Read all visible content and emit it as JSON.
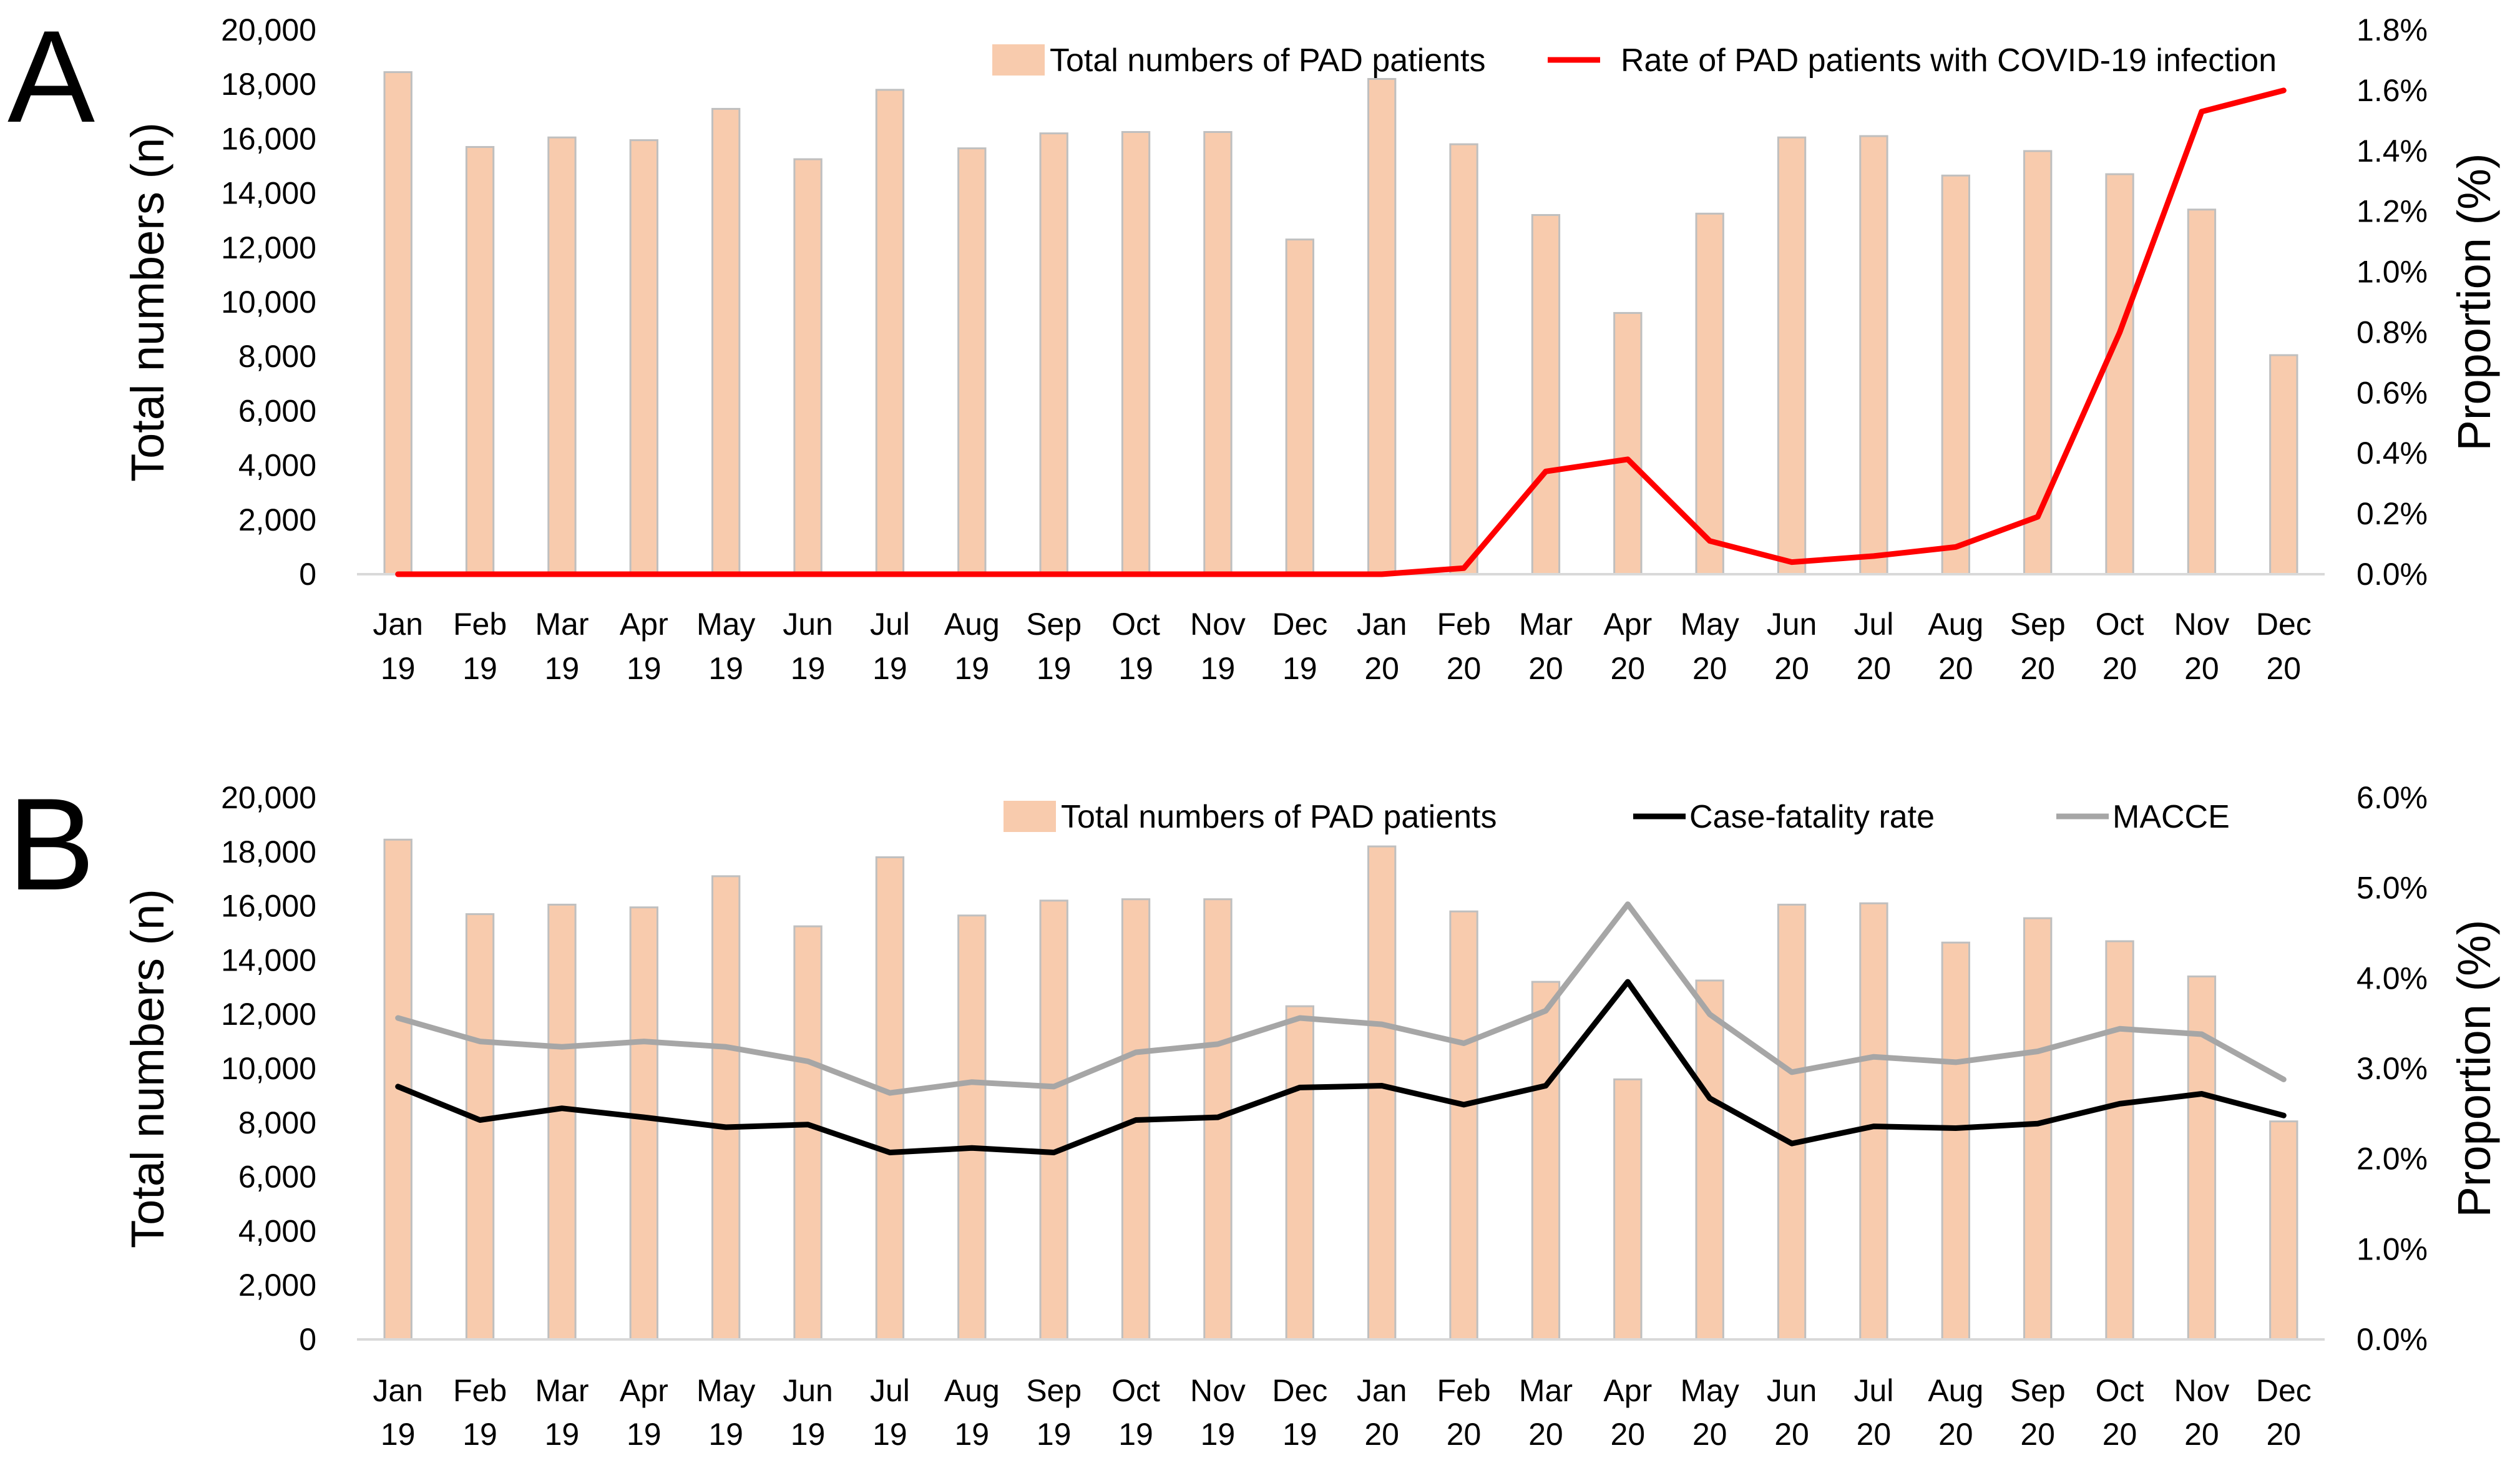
{
  "figure": {
    "panels": [
      "A",
      "B"
    ]
  },
  "colors": {
    "bar_fill": "#F8CBAD",
    "bar_stroke": "#BFBFBF",
    "covid_line": "#FF0000",
    "fatality_line": "#000000",
    "macce_line": "#A6A6A6",
    "axis": "#D9D9D9"
  },
  "chart_data": [
    {
      "panel": "A",
      "type": "bar",
      "title": "",
      "categories": [
        [
          "Jan",
          "19"
        ],
        [
          "Feb",
          "19"
        ],
        [
          "Mar",
          "19"
        ],
        [
          "Apr",
          "19"
        ],
        [
          "May",
          "19"
        ],
        [
          "Jun",
          "19"
        ],
        [
          "Jul",
          "19"
        ],
        [
          "Aug",
          "19"
        ],
        [
          "Sep",
          "19"
        ],
        [
          "Oct",
          "19"
        ],
        [
          "Nov",
          "19"
        ],
        [
          "Dec",
          "19"
        ],
        [
          "Jan",
          "20"
        ],
        [
          "Feb",
          "20"
        ],
        [
          "Mar",
          "20"
        ],
        [
          "Apr",
          "20"
        ],
        [
          "May",
          "20"
        ],
        [
          "Jun",
          "20"
        ],
        [
          "Jul",
          "20"
        ],
        [
          "Aug",
          "20"
        ],
        [
          "Sep",
          "20"
        ],
        [
          "Oct",
          "20"
        ],
        [
          "Nov",
          "20"
        ],
        [
          "Dec",
          "20"
        ]
      ],
      "ylabel": "Total numbers (n)",
      "y2label": "Proportion (%)",
      "ylim": [
        0,
        20000
      ],
      "y2lim": [
        0,
        1.8
      ],
      "yticks": [
        "0",
        "2,000",
        "4,000",
        "6,000",
        "8,000",
        "10,000",
        "12,000",
        "14,000",
        "16,000",
        "18,000",
        "20,000"
      ],
      "y2ticks": [
        "0.0%",
        "0.2%",
        "0.4%",
        "0.6%",
        "0.8%",
        "1.0%",
        "1.2%",
        "1.4%",
        "1.6%",
        "1.8%"
      ],
      "series": [
        {
          "name": "Total numbers of PAD patients",
          "kind": "bar",
          "axis": "left",
          "color": "#F8CBAD",
          "values": [
            18450,
            15700,
            16050,
            15950,
            17100,
            15250,
            17800,
            15650,
            16200,
            16250,
            16250,
            12300,
            18200,
            15800,
            13200,
            9600,
            13250,
            16050,
            16100,
            14650,
            15550,
            14700,
            13400,
            8050
          ]
        },
        {
          "name": "Rate of PAD patients with COVID-19 infection",
          "kind": "line",
          "axis": "right",
          "color": "#FF0000",
          "values": [
            0,
            0,
            0,
            0,
            0,
            0,
            0,
            0,
            0,
            0,
            0,
            0,
            0,
            0.02,
            0.34,
            0.38,
            0.11,
            0.04,
            0.06,
            0.09,
            0.19,
            0.8,
            1.53,
            1.6
          ]
        }
      ],
      "legend": "top-right"
    },
    {
      "panel": "B",
      "type": "bar",
      "title": "",
      "categories": [
        [
          "Jan",
          "19"
        ],
        [
          "Feb",
          "19"
        ],
        [
          "Mar",
          "19"
        ],
        [
          "Apr",
          "19"
        ],
        [
          "May",
          "19"
        ],
        [
          "Jun",
          "19"
        ],
        [
          "Jul",
          "19"
        ],
        [
          "Aug",
          "19"
        ],
        [
          "Sep",
          "19"
        ],
        [
          "Oct",
          "19"
        ],
        [
          "Nov",
          "19"
        ],
        [
          "Dec",
          "19"
        ],
        [
          "Jan",
          "20"
        ],
        [
          "Feb",
          "20"
        ],
        [
          "Mar",
          "20"
        ],
        [
          "Apr",
          "20"
        ],
        [
          "May",
          "20"
        ],
        [
          "Jun",
          "20"
        ],
        [
          "Jul",
          "20"
        ],
        [
          "Aug",
          "20"
        ],
        [
          "Sep",
          "20"
        ],
        [
          "Oct",
          "20"
        ],
        [
          "Nov",
          "20"
        ],
        [
          "Dec",
          "20"
        ]
      ],
      "ylabel": "Total numbers (n)",
      "y2label": "Proportion (%)",
      "ylim": [
        0,
        20000
      ],
      "y2lim": [
        0,
        6.0
      ],
      "yticks": [
        "0",
        "2,000",
        "4,000",
        "6,000",
        "8,000",
        "10,000",
        "12,000",
        "14,000",
        "16,000",
        "18,000",
        "20,000"
      ],
      "y2ticks": [
        "0.0%",
        "1.0%",
        "2.0%",
        "3.0%",
        "4.0%",
        "5.0%",
        "6.0%"
      ],
      "series": [
        {
          "name": "Total numbers of PAD patients",
          "kind": "bar",
          "axis": "left",
          "color": "#F8CBAD",
          "values": [
            18450,
            15700,
            16050,
            15950,
            17100,
            15250,
            17800,
            15650,
            16200,
            16250,
            16250,
            12300,
            18200,
            15800,
            13200,
            9600,
            13250,
            16050,
            16100,
            14650,
            15550,
            14700,
            13400,
            8050
          ]
        },
        {
          "name": "Case-fatality rate",
          "kind": "line",
          "axis": "right",
          "color": "#000000",
          "values": [
            2.8,
            2.43,
            2.56,
            2.46,
            2.35,
            2.38,
            2.07,
            2.12,
            2.07,
            2.43,
            2.46,
            2.79,
            2.81,
            2.6,
            2.81,
            3.96,
            2.67,
            2.17,
            2.36,
            2.34,
            2.39,
            2.61,
            2.72,
            2.48
          ]
        },
        {
          "name": "MACCE",
          "kind": "line",
          "axis": "right",
          "color": "#A6A6A6",
          "values": [
            3.56,
            3.3,
            3.24,
            3.3,
            3.24,
            3.08,
            2.73,
            2.85,
            2.8,
            3.18,
            3.27,
            3.56,
            3.49,
            3.28,
            3.64,
            4.82,
            3.6,
            2.96,
            3.13,
            3.07,
            3.19,
            3.44,
            3.38,
            2.88
          ]
        }
      ],
      "legend": "top-right"
    }
  ]
}
